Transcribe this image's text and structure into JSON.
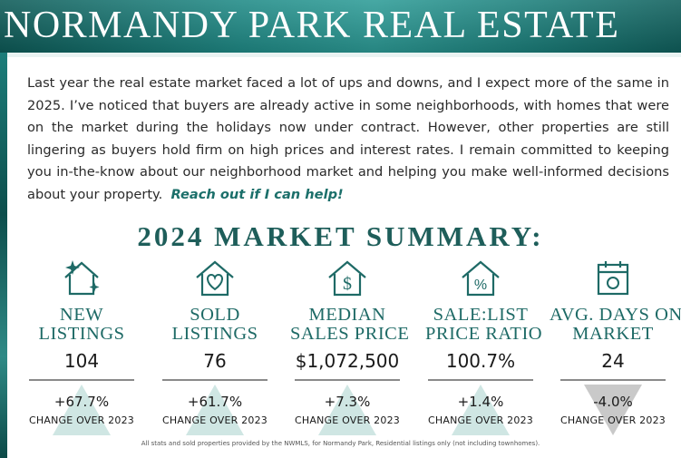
{
  "header": {
    "title": "NORMANDY PARK REAL ESTATE"
  },
  "intro": {
    "paragraph": "Last year the real estate market faced a lot of ups and downs, and I expect more of the same in 2025. I’ve noticed that buyers are already active in some neighborhoods, with homes that were on the market during the holidays now under contract. However, other properties are still lingering as buyers hold firm on high prices and interest rates. I remain committed to keeping you in-the-know about our neighborhood market and helping you make well-informed decisions about your property.",
    "cta": "Reach out if I can help!"
  },
  "summary": {
    "title": "2024 MARKET SUMMARY:",
    "stats": [
      {
        "label1": "NEW",
        "label2": "LISTINGS",
        "value": "104",
        "change": "+67.7%",
        "change_label": "CHANGE OVER 2023",
        "direction": "up",
        "icon": "house-sparkle-icon"
      },
      {
        "label1": "SOLD",
        "label2": "LISTINGS",
        "value": "76",
        "change": "+61.7%",
        "change_label": "CHANGE OVER 2023",
        "direction": "up",
        "icon": "house-heart-icon"
      },
      {
        "label1": "MEDIAN",
        "label2": "SALES PRICE",
        "value": "$1,072,500",
        "change": "+7.3%",
        "change_label": "CHANGE OVER 2023",
        "direction": "up",
        "icon": "house-dollar-icon"
      },
      {
        "label1": "SALE:LIST",
        "label2": "PRICE RATIO",
        "value": "100.7%",
        "change": "+1.4%",
        "change_label": "CHANGE OVER 2023",
        "direction": "up",
        "icon": "house-percent-icon"
      },
      {
        "label1": "AVG. DAYS ON",
        "label2": "MARKET",
        "value": "24",
        "change": "-4.0%",
        "change_label": "CHANGE OVER 2023",
        "direction": "down",
        "icon": "calendar-icon"
      }
    ]
  },
  "footnote": "All stats and sold properties provided by the NWMLS, for Normandy Park, Residential listings only (not including townhomes).",
  "colors": {
    "teal": "#1e6a66",
    "arrow_up": "#cfe6e3",
    "arrow_down": "#c9c9c9"
  }
}
